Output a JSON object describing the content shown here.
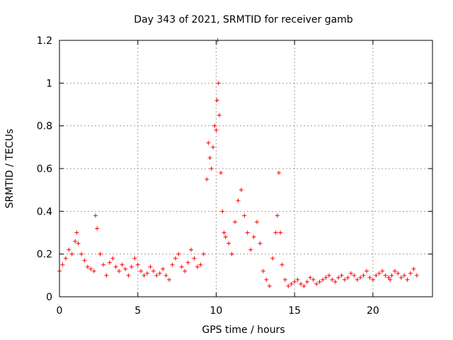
{
  "chart_data": {
    "type": "scatter",
    "title": "Day 343 of 2021, SRMTID for receiver gamb",
    "xlabel": "GPS time / hours",
    "ylabel": "SRMTID / TECUs",
    "xlim": [
      0,
      23.8
    ],
    "ylim": [
      0,
      1.2
    ],
    "grid": true,
    "marker": "+",
    "marker_color": "#ff0000",
    "x_ticks": [
      0,
      5,
      10,
      15,
      20
    ],
    "x_tick_labels": [
      "0",
      "5",
      "10",
      "15",
      "20"
    ],
    "y_ticks": [
      0,
      0.2,
      0.4,
      0.6,
      0.8,
      1.0,
      1.2
    ],
    "y_tick_labels": [
      "0",
      "0.2",
      "0.4",
      "0.6",
      "0.8",
      "1",
      "1.2"
    ],
    "series": [
      {
        "name": "SRMTID",
        "x": [
          0.0,
          0.2,
          0.4,
          0.6,
          0.8,
          1.0,
          1.1,
          1.2,
          1.4,
          1.6,
          1.8,
          2.0,
          2.2,
          2.3,
          2.4,
          2.6,
          2.8,
          3.0,
          3.2,
          3.4,
          3.6,
          3.8,
          4.0,
          4.2,
          4.4,
          4.6,
          4.8,
          5.0,
          5.2,
          5.4,
          5.6,
          5.8,
          6.0,
          6.2,
          6.4,
          6.6,
          6.8,
          7.0,
          7.2,
          7.4,
          7.6,
          7.8,
          8.0,
          8.2,
          8.4,
          8.6,
          8.8,
          9.0,
          9.2,
          9.4,
          9.5,
          9.6,
          9.7,
          9.8,
          9.9,
          10.0,
          10.05,
          10.1,
          10.15,
          10.2,
          10.3,
          10.4,
          10.5,
          10.6,
          10.8,
          11.0,
          11.2,
          11.4,
          11.6,
          11.8,
          12.0,
          12.2,
          12.4,
          12.6,
          12.8,
          13.0,
          13.2,
          13.4,
          13.6,
          13.8,
          13.9,
          14.0,
          14.1,
          14.2,
          14.4,
          14.6,
          14.8,
          15.0,
          15.2,
          15.4,
          15.6,
          15.8,
          16.0,
          16.2,
          16.4,
          16.6,
          16.8,
          17.0,
          17.2,
          17.4,
          17.6,
          17.8,
          18.0,
          18.2,
          18.4,
          18.6,
          18.8,
          19.0,
          19.2,
          19.4,
          19.6,
          19.8,
          20.0,
          20.2,
          20.4,
          20.6,
          20.8,
          21.0,
          21.1,
          21.2,
          21.4,
          21.6,
          21.8,
          22.0,
          22.2,
          22.4,
          22.6,
          22.8
        ],
        "y": [
          0.12,
          0.15,
          0.18,
          0.22,
          0.2,
          0.26,
          0.3,
          0.25,
          0.2,
          0.17,
          0.14,
          0.13,
          0.12,
          0.38,
          0.32,
          0.2,
          0.15,
          0.1,
          0.16,
          0.18,
          0.14,
          0.12,
          0.15,
          0.13,
          0.1,
          0.14,
          0.18,
          0.15,
          0.12,
          0.1,
          0.11,
          0.14,
          0.12,
          0.1,
          0.11,
          0.13,
          0.1,
          0.08,
          0.15,
          0.18,
          0.2,
          0.14,
          0.12,
          0.16,
          0.22,
          0.18,
          0.14,
          0.15,
          0.2,
          0.55,
          0.72,
          0.65,
          0.6,
          0.7,
          0.8,
          0.78,
          0.92,
          1.2,
          1.0,
          0.85,
          0.58,
          0.4,
          0.3,
          0.28,
          0.25,
          0.2,
          0.35,
          0.45,
          0.5,
          0.38,
          0.3,
          0.22,
          0.28,
          0.35,
          0.25,
          0.12,
          0.08,
          0.05,
          0.18,
          0.3,
          0.38,
          0.58,
          0.3,
          0.15,
          0.08,
          0.05,
          0.06,
          0.07,
          0.08,
          0.06,
          0.05,
          0.07,
          0.09,
          0.08,
          0.06,
          0.07,
          0.08,
          0.09,
          0.1,
          0.08,
          0.07,
          0.09,
          0.1,
          0.08,
          0.09,
          0.11,
          0.1,
          0.08,
          0.09,
          0.1,
          0.12,
          0.09,
          0.08,
          0.1,
          0.11,
          0.12,
          0.1,
          0.09,
          0.08,
          0.1,
          0.12,
          0.11,
          0.09,
          0.1,
          0.08,
          0.11,
          0.13,
          0.1
        ]
      }
    ]
  }
}
